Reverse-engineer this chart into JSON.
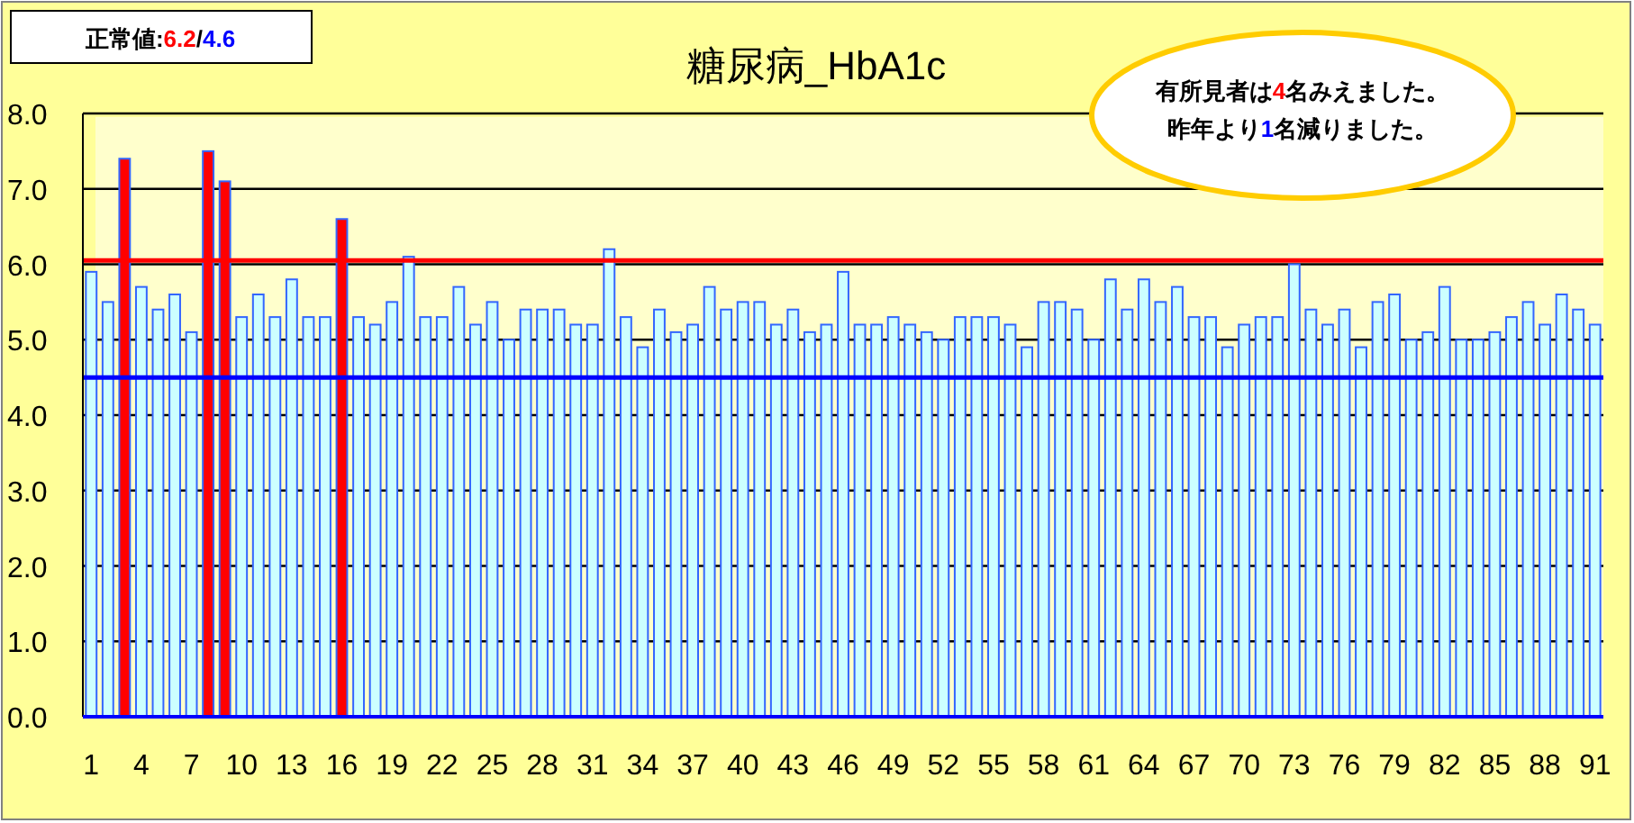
{
  "chart_data": {
    "type": "bar",
    "title": "糖尿病_HbA1c",
    "categories": [
      "1",
      null,
      null,
      "4",
      null,
      null,
      "7",
      null,
      null,
      "10",
      null,
      null,
      "13",
      null,
      null,
      "16",
      null,
      null,
      "19",
      null,
      null,
      "22",
      null,
      null,
      "25",
      null,
      null,
      "28",
      null,
      null,
      "31",
      null,
      null,
      "34",
      null,
      null,
      "37",
      null,
      null,
      "40",
      null,
      null,
      "43",
      null,
      null,
      "46",
      null,
      null,
      "49",
      null,
      null,
      "52",
      null,
      null,
      "55",
      null,
      null,
      "58",
      null,
      null,
      "61",
      null,
      null,
      "64",
      null,
      null,
      "67",
      null,
      null,
      "70",
      null,
      null,
      "73",
      null,
      null,
      "76",
      null,
      null,
      "79",
      null,
      null,
      "82",
      null,
      null,
      "85",
      null,
      null,
      "88",
      null,
      null,
      "91"
    ],
    "values": [
      5.9,
      5.5,
      7.4,
      5.7,
      5.4,
      5.6,
      5.1,
      7.5,
      7.1,
      5.3,
      5.6,
      5.3,
      5.8,
      5.3,
      5.3,
      6.6,
      5.3,
      5.2,
      5.5,
      6.1,
      5.3,
      5.3,
      5.7,
      5.2,
      5.5,
      5.0,
      5.4,
      5.4,
      5.4,
      5.2,
      5.2,
      6.2,
      5.3,
      4.9,
      5.4,
      5.1,
      5.2,
      5.7,
      5.4,
      5.5,
      5.5,
      5.2,
      5.4,
      5.1,
      5.2,
      5.9,
      5.2,
      5.2,
      5.3,
      5.2,
      5.1,
      5.0,
      5.3,
      5.3,
      5.3,
      5.2,
      4.9,
      5.5,
      5.5,
      5.4,
      5.0,
      5.8,
      5.4,
      5.8,
      5.5,
      5.7,
      5.3,
      5.3,
      4.9,
      5.2,
      5.3,
      5.3,
      6.0,
      5.4,
      5.2,
      5.4,
      4.9,
      5.5,
      5.6,
      5.0,
      5.1,
      5.7,
      5.0,
      5.0,
      5.1,
      5.3,
      5.5,
      5.2,
      5.6,
      5.4,
      5.2
    ],
    "colors": [
      "#ccffff",
      "#ccffff",
      "#ff0000",
      "#ccffff",
      "#ccffff",
      "#ccffff",
      "#ccffff",
      "#ff0000",
      "#ff0000",
      "#ccffff",
      "#ccffff",
      "#ccffff",
      "#ccffff",
      "#ccffff",
      "#ccffff",
      "#ff0000",
      "#ccffff",
      "#ccffff",
      "#ccffff",
      "#ccffff",
      "#ccffff",
      "#ccffff",
      "#ccffff",
      "#ccffff",
      "#ccffff",
      "#ccffff",
      "#ccffff",
      "#ccffff",
      "#ccffff",
      "#ccffff",
      "#ccffff",
      "#ccffff",
      "#ccffff",
      "#ccffff",
      "#ccffff",
      "#ccffff",
      "#ccffff",
      "#ccffff",
      "#ccffff",
      "#ccffff",
      "#ccffff",
      "#ccffff",
      "#ccffff",
      "#ccffff",
      "#ccffff",
      "#ccffff",
      "#ccffff",
      "#ccffff",
      "#ccffff",
      "#ccffff",
      "#ccffff",
      "#ccffff",
      "#ccffff",
      "#ccffff",
      "#ccffff",
      "#ccffff",
      "#ccffff",
      "#ccffff",
      "#ccffff",
      "#ccffff",
      "#ccffff",
      "#ccffff",
      "#ccffff",
      "#ccffff",
      "#ccffff",
      "#ccffff",
      "#ccffff",
      "#ccffff",
      "#ccffff",
      "#ccffff",
      "#ccffff",
      "#ccffff",
      "#ccffff",
      "#ccffff",
      "#ccffff",
      "#ccffff",
      "#ccffff",
      "#ccffff",
      "#ccffff",
      "#ccffff",
      "#ccffff",
      "#ccffff",
      "#ccffff",
      "#ccffff",
      "#ccffff",
      "#ccffff",
      "#ccffff",
      "#ccffff",
      "#ccffff",
      "#ccffff",
      "#ccffff"
    ],
    "ylim": [
      0,
      8
    ],
    "yticks": [
      {
        "value": 0,
        "label": "0.0"
      },
      {
        "value": 1,
        "label": "1.0"
      },
      {
        "value": 2,
        "label": "2.0"
      },
      {
        "value": 3,
        "label": "3.0"
      },
      {
        "value": 4,
        "label": "4.0"
      },
      {
        "value": 5,
        "label": "5.0"
      },
      {
        "value": 6,
        "label": "6.0"
      },
      {
        "value": 7,
        "label": "7.0"
      },
      {
        "value": 8,
        "label": "8.0"
      }
    ],
    "grid": "y",
    "ref_lines": [
      {
        "axis": "y",
        "value": 6.05,
        "color": "#ff0000"
      },
      {
        "axis": "y",
        "value": 4.5,
        "color": "#0000ff"
      }
    ],
    "annotations": [
      "正常値:6.2/4.6",
      "有所見者は4名みえました。",
      "昨年より1名減りました。"
    ]
  }
}
